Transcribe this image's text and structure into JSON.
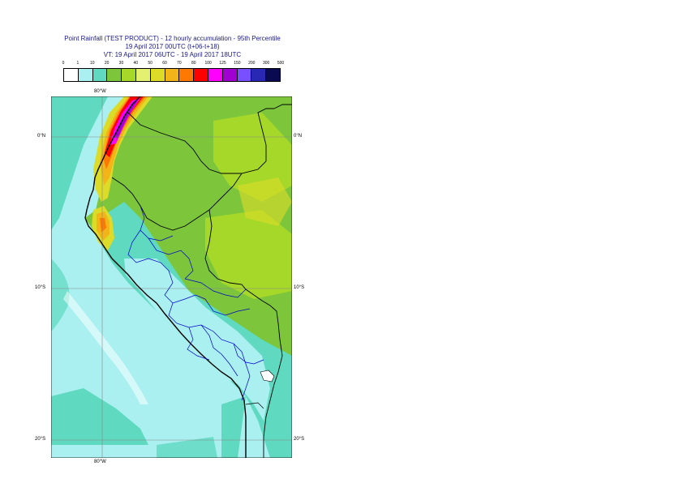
{
  "title": {
    "line1": "Point Rainfall (TEST PRODUCT) - 12 hourly accumulation - 95th Percentile",
    "line2": "19 April 2017 00UTC (t+06-t+18)",
    "line3": "VT: 19 April 2017 06UTC - 19 April 2017 18UTC"
  },
  "legend": {
    "ticks": [
      "0",
      "1",
      "10",
      "20",
      "30",
      "40",
      "50",
      "60",
      "70",
      "80",
      "100",
      "125",
      "150",
      "200",
      "300",
      "500"
    ],
    "colors": [
      "#ffffff",
      "#aaf0f0",
      "#5fd9c0",
      "#7dc63c",
      "#a6d82a",
      "#e4f070",
      "#dcdc28",
      "#f2b418",
      "#ff7800",
      "#ff0000",
      "#ff00ff",
      "#a000d0",
      "#7850ff",
      "#2828b4",
      "#0a0a50"
    ]
  },
  "map": {
    "lon_labels": [
      "80°W",
      "80°W"
    ],
    "lat_labels_left": [
      "0°N",
      "10°S",
      "20°S"
    ],
    "lat_labels_right": [
      "0°N",
      "10°S",
      "20°S"
    ],
    "colors": {
      "light_cyan": "#aaf0f0",
      "turquoise": "#5fd9c0",
      "green": "#7dc63c",
      "light_green": "#a6d82a",
      "yellow": "#dcdc28",
      "orange": "#f2b418",
      "dark_orange": "#ff7800",
      "red": "#ff0000",
      "magenta": "#ff00ff",
      "purple": "#a000d0",
      "coast": "#000000",
      "region_borders": "#0000c8",
      "graticule": "#888888"
    }
  }
}
